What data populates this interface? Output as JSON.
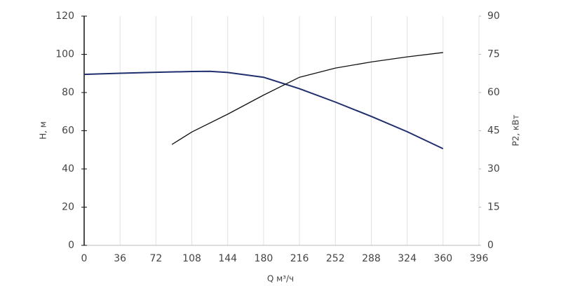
{
  "chart_data": {
    "type": "line",
    "xlabel": "Q м³/ч",
    "ylabel": "H, м",
    "y2label": "P2, кВт",
    "xlim": [
      0,
      396
    ],
    "xticks": [
      0,
      36,
      72,
      108,
      144,
      180,
      216,
      252,
      288,
      324,
      360,
      396
    ],
    "ylim": [
      0,
      120
    ],
    "yticks": [
      0,
      20,
      40,
      60,
      80,
      100,
      120
    ],
    "y2lim": [
      0,
      90
    ],
    "y2ticks": [
      0,
      15,
      30,
      45,
      60,
      75,
      90
    ],
    "grid": true,
    "series": [
      {
        "color": "#1f2f6e",
        "x": [
          0,
          36,
          72,
          108,
          126,
          144,
          180,
          216,
          252,
          288,
          324,
          360
        ],
        "values": [
          89.5,
          90.1,
          90.6,
          91,
          91.1,
          90.5,
          88,
          82,
          75,
          67.5,
          59.5,
          50.6
        ]
      },
      {
        "color": "#111111",
        "axis": "y2",
        "x": [
          88,
          108,
          144,
          180,
          216,
          252,
          288,
          324,
          360
        ],
        "values": [
          39.6,
          44.5,
          51.5,
          59,
          66,
          69.6,
          72,
          74,
          75.7
        ]
      }
    ]
  }
}
